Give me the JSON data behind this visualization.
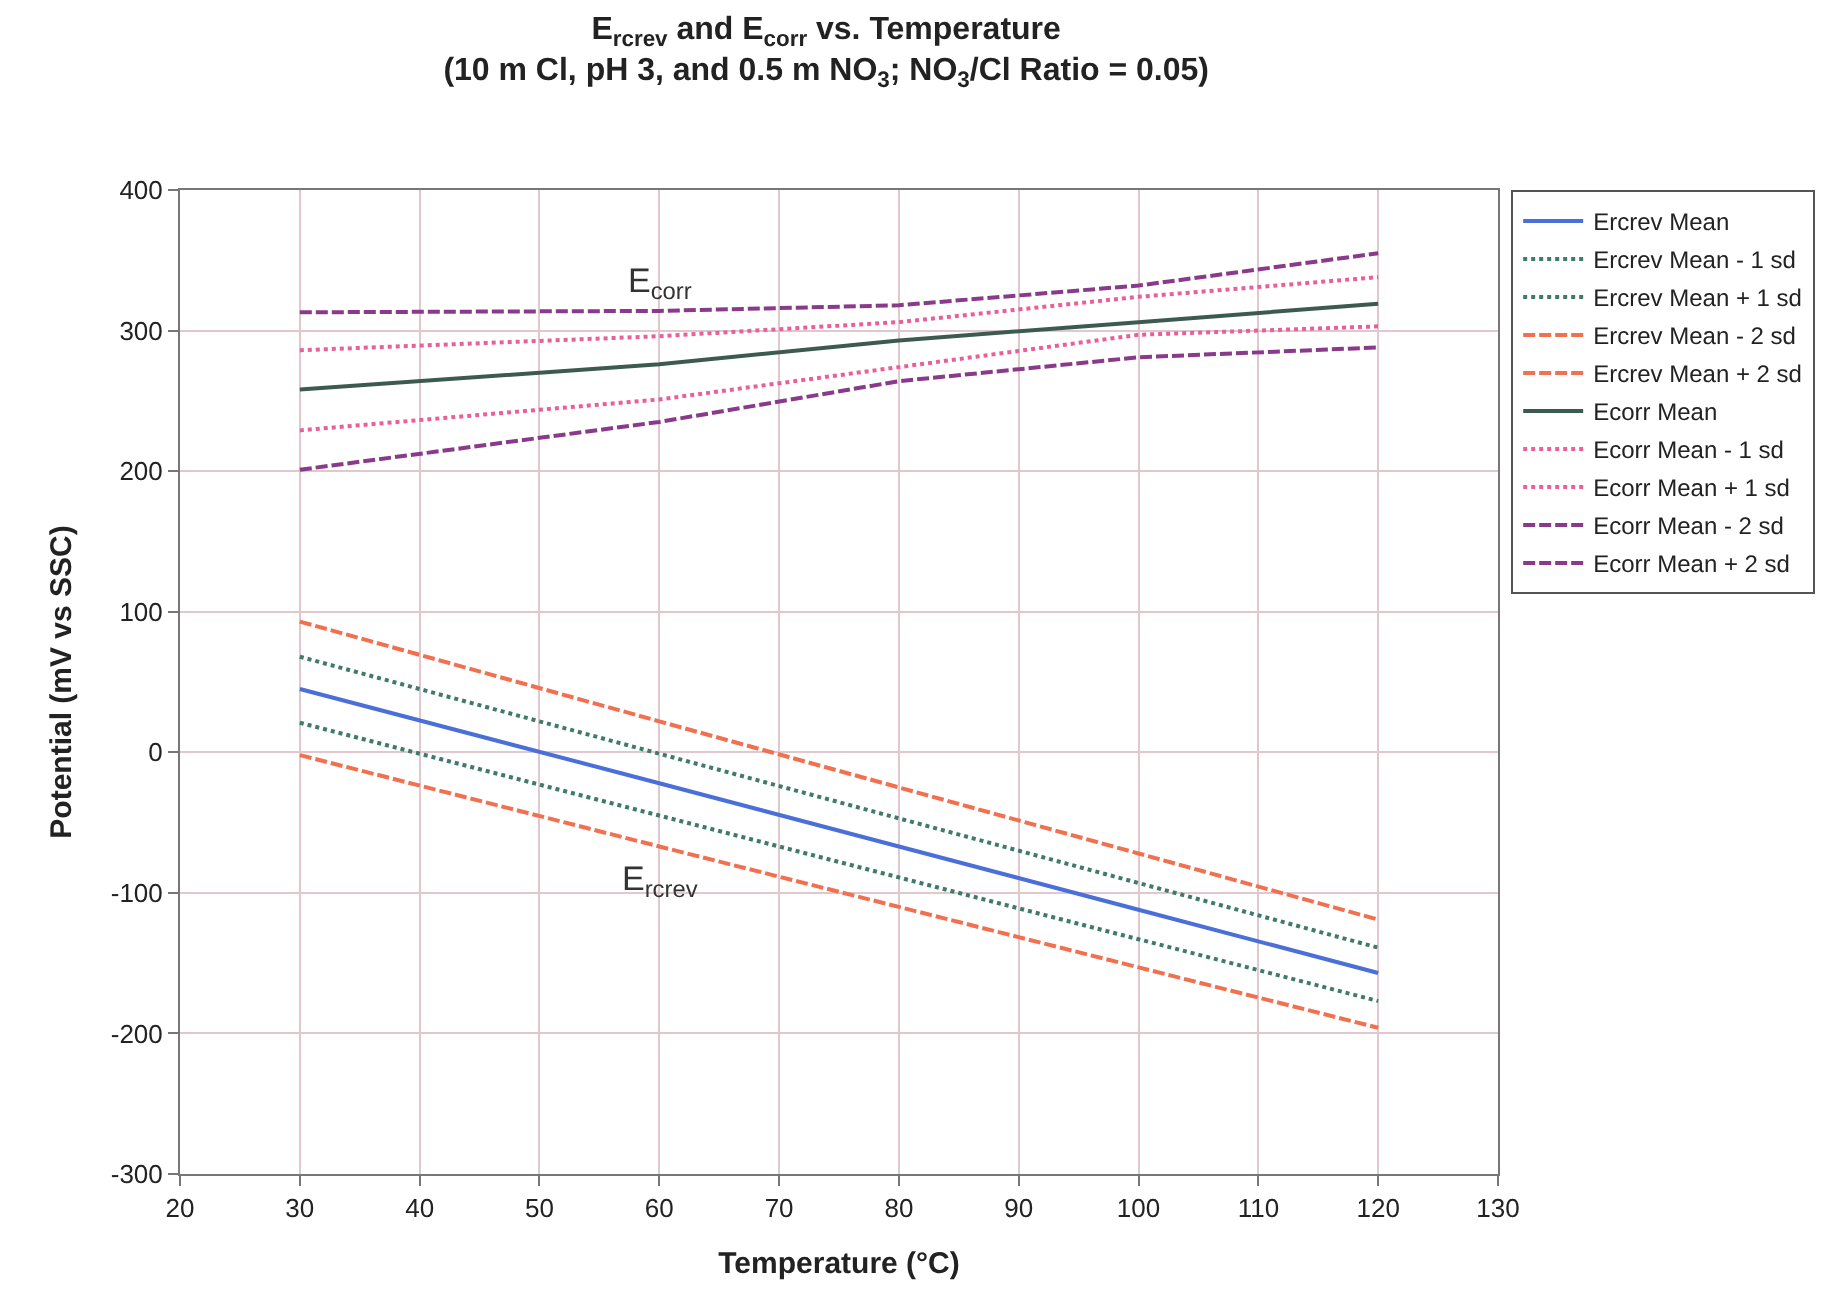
{
  "chart_data": {
    "type": "line",
    "title": "E$_{rcrev}$ and E$_{corr}$ vs. Temperature",
    "subtitle": "(10 m Cl, pH 3, and 0.5 m NO$_{3}$; NO$_{3}$/Cl Ratio = 0.05)",
    "xlabel": "Temperature (°C)",
    "ylabel": "Potential (mV vs SSC)",
    "x": [
      30,
      60,
      80,
      100,
      120
    ],
    "series": [
      {
        "name": "Ercrev Mean",
        "color": "#4a6fd8",
        "line_style": "solid",
        "values": [
          45,
          -22,
          -67,
          -112,
          -157
        ]
      },
      {
        "name": "Ercrev Mean - 1 sd",
        "color": "#3f7a6a",
        "line_style": "dotted",
        "values": [
          21,
          -45,
          -89,
          -133,
          -177
        ]
      },
      {
        "name": "Ercrev Mean + 1 sd",
        "color": "#3f7a6a",
        "line_style": "dotted",
        "values": [
          68,
          -1,
          -47,
          -93,
          -139
        ]
      },
      {
        "name": "Ercrev Mean - 2 sd",
        "color": "#f07050",
        "line_style": "dashed",
        "values": [
          -2,
          -67,
          -110,
          -153,
          -196
        ]
      },
      {
        "name": "Ercrev Mean + 2 sd",
        "color": "#f07050",
        "line_style": "dashed",
        "values": [
          93,
          22,
          -25,
          -72,
          -119
        ]
      },
      {
        "name": "Ecorr Mean",
        "color": "#3d5a50",
        "line_style": "solid",
        "values": [
          258,
          276,
          293,
          306,
          319
        ]
      },
      {
        "name": "Ecorr Mean - 1 sd",
        "color": "#e8609a",
        "line_style": "dotted",
        "values": [
          229,
          251,
          274,
          297,
          303
        ]
      },
      {
        "name": "Ecorr Mean + 1 sd",
        "color": "#e8609a",
        "line_style": "dotted",
        "values": [
          286,
          296,
          306,
          324,
          338
        ]
      },
      {
        "name": "Ecorr Mean - 2 sd",
        "color": "#8a3a8a",
        "line_style": "dashed",
        "values": [
          201,
          235,
          264,
          281,
          288
        ]
      },
      {
        "name": "Ecorr Mean + 2 sd",
        "color": "#8a3a8a",
        "line_style": "dashed",
        "values": [
          313,
          314,
          318,
          332,
          355
        ]
      }
    ],
    "annotations": [
      "E$_{corr}$",
      "E$_{rcrev}$"
    ],
    "xlim": [
      20,
      130
    ],
    "xticks": [
      20,
      30,
      40,
      50,
      60,
      70,
      80,
      90,
      100,
      110,
      120,
      130
    ],
    "ylim": [
      -300,
      400
    ],
    "yticks": [
      -300,
      -200,
      -100,
      0,
      100,
      200,
      300,
      400
    ],
    "grid": true,
    "legend": "top right",
    "marker": "none"
  }
}
